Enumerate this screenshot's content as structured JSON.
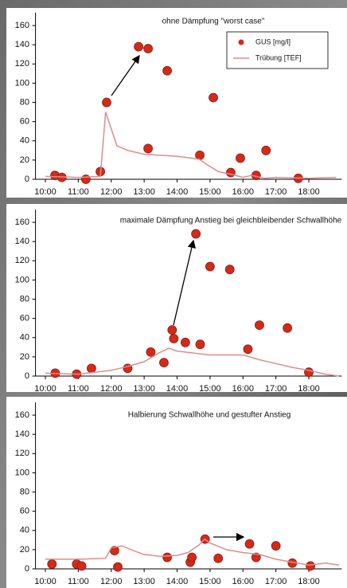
{
  "chart_data": [
    {
      "type": "scatter",
      "title": "ohne Dämpfung \"worst case\"",
      "legend": "upper right",
      "xlim": [
        9.7,
        19.0
      ],
      "ylim": [
        0,
        170
      ],
      "xticks": [
        {
          "value": 10,
          "label": "10:00"
        },
        {
          "value": 11,
          "label": "11:00"
        },
        {
          "value": 12,
          "label": "12:00"
        },
        {
          "value": 13,
          "label": "13:00"
        },
        {
          "value": 14,
          "label": "14:00"
        },
        {
          "value": 15,
          "label": "15:00"
        },
        {
          "value": 16,
          "label": "16:00"
        },
        {
          "value": 17,
          "label": "17:00"
        },
        {
          "value": 18,
          "label": "18:00"
        }
      ],
      "yticks": [
        0,
        20,
        40,
        60,
        80,
        100,
        120,
        140,
        160
      ],
      "series": [
        {
          "name": "GUS [mg/l]",
          "kind": "scatter",
          "color": "#d42a1a",
          "x": [
            10.29,
            10.5,
            11.23,
            11.67,
            11.86,
            12.83,
            13.12,
            13.12,
            13.7,
            14.69,
            15.1,
            15.63,
            15.92,
            16.4,
            16.7,
            17.68
          ],
          "values": [
            4,
            2,
            0,
            8,
            80,
            138,
            136,
            32,
            113,
            25,
            85,
            7,
            22,
            4,
            30,
            1
          ]
        },
        {
          "name": "Trübung [TEF]",
          "kind": "line",
          "color": "#e08c8c",
          "x": [
            10,
            11,
            11.67,
            11.83,
            12.17,
            12.5,
            13,
            14,
            14.67,
            14.92,
            15.25,
            15.67,
            16,
            16.25,
            16.67,
            17,
            18,
            18.83
          ],
          "values": [
            3,
            2,
            3,
            70,
            35,
            30,
            26,
            24,
            21,
            15,
            8,
            5,
            2,
            4,
            1,
            2,
            1,
            2
          ]
        }
      ]
    },
    {
      "type": "scatter",
      "title": "maximale Dämpfung Anstieg bei gleichbleibender Schwallhöhe",
      "xlim": [
        9.7,
        19.0
      ],
      "ylim": [
        0,
        170
      ],
      "xticks": [
        {
          "value": 10,
          "label": "10:00"
        },
        {
          "value": 11,
          "label": "11:00"
        },
        {
          "value": 12,
          "label": "12:00"
        },
        {
          "value": 13,
          "label": "13:00"
        },
        {
          "value": 14,
          "label": "14:00"
        },
        {
          "value": 15,
          "label": "15:00"
        },
        {
          "value": 16,
          "label": "16:00"
        },
        {
          "value": 17,
          "label": "17:00"
        },
        {
          "value": 18,
          "label": "18:00"
        }
      ],
      "yticks": [
        0,
        20,
        40,
        60,
        80,
        100,
        120,
        140,
        160
      ],
      "series": [
        {
          "kind": "scatter",
          "color": "#d42a1a",
          "x": [
            10.3,
            10.95,
            11.4,
            12.5,
            13.2,
            13.6,
            13.85,
            13.9,
            14.25,
            14.57,
            14.7,
            15.0,
            15.6,
            16.15,
            16.5,
            17.35,
            18.0
          ],
          "values": [
            3,
            2,
            8,
            8,
            25,
            14,
            48,
            39,
            35,
            148,
            33,
            114,
            111,
            28,
            53,
            50,
            4
          ]
        },
        {
          "kind": "line",
          "color": "#e08c8c",
          "x": [
            10,
            11,
            11.5,
            12,
            12.5,
            13,
            13.5,
            13.75,
            14,
            14.5,
            15,
            15.5,
            16,
            16.5,
            17,
            17.5,
            18,
            18.5,
            18.92
          ],
          "values": [
            3,
            2,
            4,
            6,
            10,
            15,
            25,
            29,
            26,
            24,
            22,
            22,
            22,
            17,
            13,
            9,
            6,
            2,
            0
          ]
        }
      ]
    },
    {
      "type": "scatter",
      "title": "Halbierung Schwallhöhe und gestufter Anstieg",
      "xlim": [
        9.7,
        19.0
      ],
      "ylim": [
        0,
        170
      ],
      "xticks": [
        {
          "value": 10,
          "label": "10:00"
        },
        {
          "value": 11,
          "label": "11:00"
        },
        {
          "value": 12,
          "label": "12:00"
        },
        {
          "value": 13,
          "label": "13:00"
        },
        {
          "value": 14,
          "label": "14:00"
        },
        {
          "value": 15,
          "label": "15:00"
        },
        {
          "value": 16,
          "label": "16:00"
        },
        {
          "value": 17,
          "label": "17:00"
        },
        {
          "value": 18,
          "label": "18:00"
        }
      ],
      "yticks": [
        0,
        20,
        40,
        60,
        80,
        100,
        120,
        140,
        160
      ],
      "series": [
        {
          "kind": "scatter",
          "color": "#d42a1a",
          "x": [
            10.2,
            10.95,
            11.1,
            12.1,
            12.2,
            13.7,
            14.4,
            14.45,
            14.85,
            15.25,
            16.2,
            16.4,
            17.0,
            17.5,
            18.05
          ],
          "values": [
            5,
            5,
            3,
            19,
            2,
            12,
            7,
            12,
            31,
            11,
            26,
            12,
            24,
            6,
            3
          ]
        },
        {
          "kind": "line",
          "color": "#e08c8c",
          "x": [
            10,
            11,
            11.83,
            12,
            12.33,
            12.67,
            13,
            13.5,
            14,
            14.33,
            14.67,
            14.83,
            15,
            15.5,
            16,
            16.5,
            17,
            17.5,
            18,
            18.5,
            18.92
          ],
          "values": [
            10,
            10,
            11,
            22,
            24,
            19,
            15,
            13,
            14,
            17,
            25,
            31,
            27,
            20,
            17,
            15,
            10,
            7,
            4,
            6,
            4
          ]
        }
      ]
    }
  ]
}
